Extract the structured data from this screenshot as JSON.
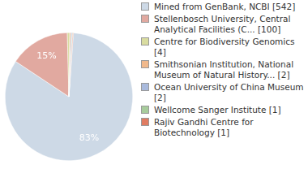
{
  "chart_data": {
    "type": "pie",
    "categories": [
      "Mined from GenBank, NCBI [542]",
      "Stellenbosch University, Central Analytical Facilities (C... [100]",
      "Centre for Biodiversity Genomics [4]",
      "Smithsonian Institution, National Museum of Natural History... [2]",
      "Ocean University of China Museum [2]",
      "Wellcome Sanger Institute [1]",
      "Rajiv Gandhi Centre for Biotechnology [1]"
    ],
    "values": [
      83.1,
      15.3,
      0.6,
      0.3,
      0.3,
      0.15,
      0.15
    ],
    "value_labels": [
      "83%",
      "15%",
      null,
      null,
      null,
      null,
      null
    ],
    "colors": [
      "#cdd9e6",
      "#e1a9a0",
      "#d9dca0",
      "#f1b98c",
      "#a9badd",
      "#a7cc9c",
      "#e07c62"
    ],
    "data_labels": true,
    "legend": "right"
  }
}
